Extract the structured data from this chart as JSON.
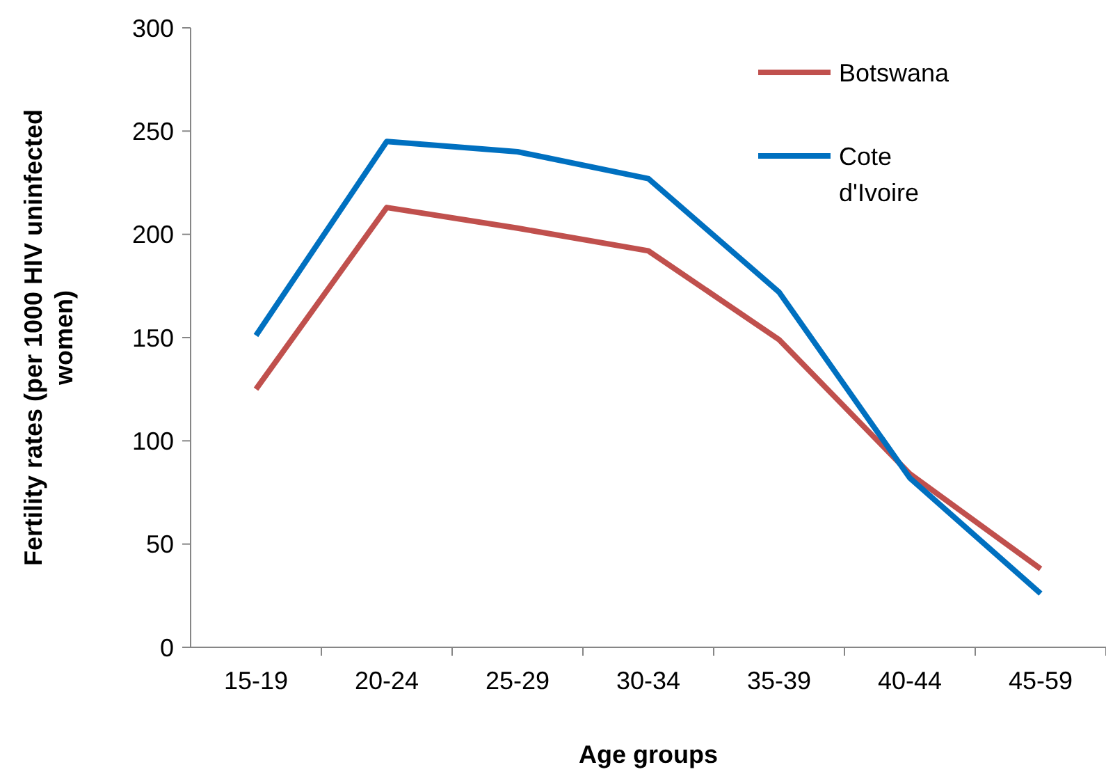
{
  "chart_data": {
    "type": "line",
    "xlabel": "Age groups",
    "ylabel": "Fertility rates (per 1000 HIV uninfected women)",
    "categories": [
      "15-19",
      "20-24",
      "25-29",
      "30-34",
      "35-39",
      "40-44",
      "45-59"
    ],
    "ylim": [
      0,
      300
    ],
    "yticks": [
      0,
      50,
      100,
      150,
      200,
      250,
      300
    ],
    "grid": false,
    "legend": "top right",
    "marker": "none",
    "line_style": "solid",
    "series": [
      {
        "name": "Botswana",
        "color": "#c0504d",
        "values": [
          125,
          213,
          203,
          192,
          149,
          84,
          38
        ]
      },
      {
        "name": "Cote d'Ivoire",
        "color": "#0070c0",
        "values": [
          151,
          245,
          240,
          227,
          172,
          82,
          26
        ]
      }
    ]
  }
}
